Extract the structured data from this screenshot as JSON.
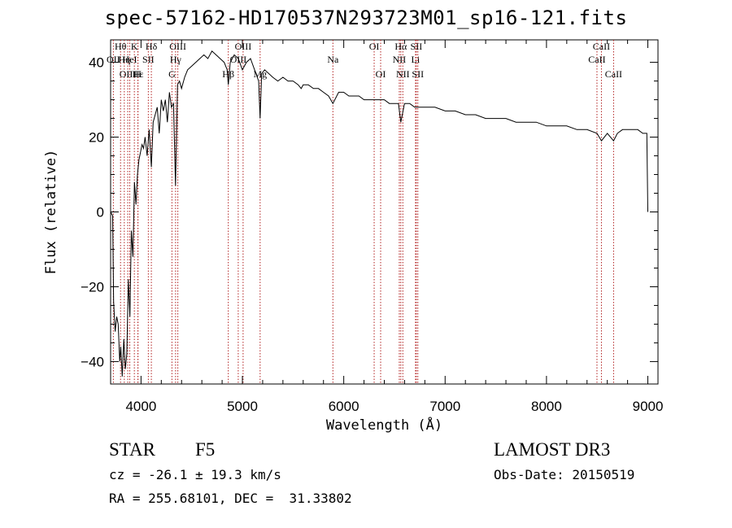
{
  "title": "spec-57162-HD170537N293723M01_sp16-121.fits",
  "info": {
    "object_class": "STAR",
    "subclass": "F5",
    "survey": "LAMOST DR3",
    "redshift_text": "cz = -26.1 ± 19.3 km/s",
    "obs_date_text": "Obs-Date: 20150519",
    "coords_text": "RA = 255.68101, DEC =  31.33802"
  },
  "chart_data": {
    "type": "line",
    "title": "spec-57162-HD170537N293723M01_sp16-121.fits",
    "xlabel": "Wavelength (Å)",
    "ylabel": "Flux (relative)",
    "xlim": [
      3700,
      9100
    ],
    "ylim": [
      -46,
      46
    ],
    "x_ticks": [
      4000,
      5000,
      6000,
      7000,
      8000,
      9000
    ],
    "y_ticks": [
      -40,
      -20,
      0,
      20,
      40
    ],
    "line_color": "#000000",
    "marker_color": "#b22222",
    "grid": false,
    "legend": "none",
    "series": [
      {
        "x": [
          3700,
          3720,
          3730,
          3745,
          3760,
          3775,
          3790,
          3800,
          3815,
          3830,
          3845,
          3860,
          3875,
          3890,
          3905,
          3920,
          3935,
          3950,
          3965,
          3980,
          3995,
          4010,
          4025,
          4040,
          4060,
          4080,
          4102,
          4120,
          4140,
          4160,
          4180,
          4200,
          4220,
          4240,
          4260,
          4280,
          4300,
          4320,
          4340,
          4360,
          4380,
          4400,
          4430,
          4460,
          4500,
          4540,
          4580,
          4620,
          4660,
          4700,
          4740,
          4780,
          4820,
          4850,
          4861,
          4880,
          4920,
          4960,
          5000,
          5040,
          5080,
          5120,
          5160,
          5175,
          5190,
          5220,
          5260,
          5300,
          5350,
          5400,
          5450,
          5500,
          5550,
          5580,
          5600,
          5650,
          5700,
          5750,
          5800,
          5850,
          5893,
          5950,
          6000,
          6050,
          6100,
          6150,
          6200,
          6250,
          6300,
          6350,
          6400,
          6450,
          6500,
          6540,
          6563,
          6600,
          6650,
          6700,
          6750,
          6800,
          6900,
          7000,
          7100,
          7200,
          7300,
          7400,
          7500,
          7600,
          7700,
          7800,
          7900,
          8000,
          8100,
          8200,
          8300,
          8400,
          8498,
          8542,
          8600,
          8662,
          8700,
          8750,
          8800,
          8850,
          8900,
          8950,
          8990,
          9000
        ],
        "values": [
          0,
          -1,
          -24,
          -32,
          -28,
          -30,
          -40,
          -36,
          -44,
          -34,
          -42,
          -38,
          -18,
          -28,
          -5,
          -12,
          8,
          2,
          10,
          14,
          16,
          18,
          17,
          20,
          15,
          22,
          12,
          24,
          26,
          28,
          21,
          30,
          27,
          30,
          24,
          32,
          28,
          29,
          7,
          34,
          35,
          33,
          36,
          38,
          39,
          40,
          41,
          42,
          41,
          43,
          42,
          41,
          40,
          38,
          34,
          40,
          42,
          41,
          38,
          40,
          41,
          38,
          35,
          25,
          37,
          38,
          37,
          36,
          35,
          36,
          35,
          35,
          34,
          33,
          34,
          34,
          33,
          33,
          32,
          31,
          29,
          32,
          32,
          31,
          31,
          31,
          30,
          30,
          30,
          30,
          30,
          29,
          29,
          29,
          24,
          29,
          29,
          28,
          28,
          28,
          28,
          27,
          27,
          26,
          26,
          25,
          25,
          25,
          24,
          24,
          24,
          23,
          23,
          23,
          22,
          22,
          21,
          19,
          21,
          19,
          21,
          22,
          22,
          22,
          22,
          21,
          21,
          0
        ]
      }
    ],
    "line_markers": [
      {
        "label": "Hθ",
        "wavelength": 3798,
        "row": 0
      },
      {
        "label": "OII",
        "wavelength": 3727,
        "row": 1
      },
      {
        "label": "Hη",
        "wavelength": 3835,
        "row": 1
      },
      {
        "label": "OIII",
        "wavelength": 3869,
        "row": 2
      },
      {
        "label": "HeI",
        "wavelength": 3889,
        "row": 1
      },
      {
        "label": "Hε",
        "wavelength": 3970,
        "row": 2
      },
      {
        "label": "K",
        "wavelength": 3934,
        "row": 0
      },
      {
        "label": "H",
        "wavelength": 3969,
        "row": 2
      },
      {
        "label": "SII",
        "wavelength": 4072,
        "row": 1
      },
      {
        "label": "Hδ",
        "wavelength": 4102,
        "row": 0
      },
      {
        "label": "G",
        "wavelength": 4305,
        "row": 2
      },
      {
        "label": "Hγ",
        "wavelength": 4341,
        "row": 1
      },
      {
        "label": "OIII",
        "wavelength": 4363,
        "row": 0
      },
      {
        "label": "Hβ",
        "wavelength": 4861,
        "row": 2
      },
      {
        "label": "OIII",
        "wavelength": 4959,
        "row": 1
      },
      {
        "label": "OIII",
        "wavelength": 5007,
        "row": 0
      },
      {
        "label": "Mg",
        "wavelength": 5175,
        "row": 2
      },
      {
        "label": "Na",
        "wavelength": 5893,
        "row": 1
      },
      {
        "label": "OI",
        "wavelength": 6300,
        "row": 0
      },
      {
        "label": "OI",
        "wavelength": 6364,
        "row": 2
      },
      {
        "label": "NII",
        "wavelength": 6548,
        "row": 1
      },
      {
        "label": "Hα",
        "wavelength": 6563,
        "row": 0
      },
      {
        "label": "NII",
        "wavelength": 6583,
        "row": 2
      },
      {
        "label": "Li",
        "wavelength": 6708,
        "row": 1
      },
      {
        "label": "SII",
        "wavelength": 6716,
        "row": 0
      },
      {
        "label": "SII",
        "wavelength": 6731,
        "row": 2
      },
      {
        "label": "CaII",
        "wavelength": 8498,
        "row": 1
      },
      {
        "label": "CaII",
        "wavelength": 8542,
        "row": 0
      },
      {
        "label": "CaII",
        "wavelength": 8662,
        "row": 2
      }
    ]
  }
}
